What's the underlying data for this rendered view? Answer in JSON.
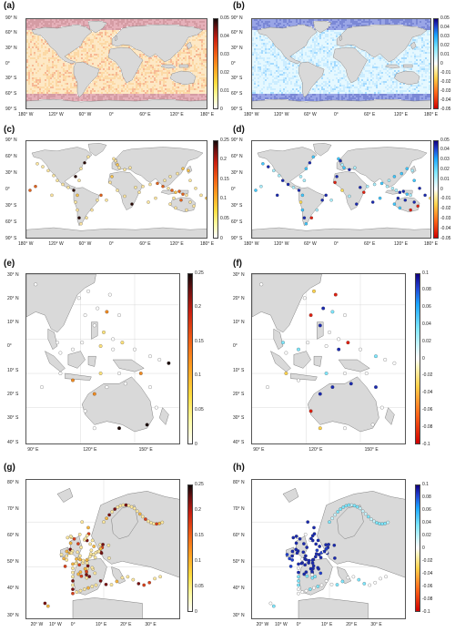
{
  "panels": [
    {
      "id": "a",
      "label": "(a)",
      "type": "global-mean",
      "colormap": "hot",
      "ticks": [
        "0.05",
        "0.04",
        "0.03",
        "0.02",
        "0.01",
        "0"
      ]
    },
    {
      "id": "b",
      "label": "(b)",
      "type": "global-diff",
      "colormap": "diverging",
      "ticks": [
        "0.05",
        "0.04",
        "0.03",
        "0.02",
        "0.01",
        "0",
        "-0.01",
        "-0.02",
        "-0.03",
        "-0.04",
        "-0.05"
      ]
    },
    {
      "id": "c",
      "label": "(c)",
      "type": "global-stations-mean",
      "colormap": "hot",
      "ticks": [
        "0.25",
        "0.2",
        "0.15",
        "0.1",
        "0.05",
        "0"
      ]
    },
    {
      "id": "d",
      "label": "(d)",
      "type": "global-stations-diff",
      "colormap": "diverging",
      "ticks": [
        "0.05",
        "0.04",
        "0.03",
        "0.02",
        "0.01",
        "0",
        "-0.01",
        "-0.02",
        "-0.03",
        "-0.04",
        "-0.05"
      ]
    },
    {
      "id": "e",
      "label": "(e)",
      "type": "seasia-mean",
      "colormap": "hot",
      "ticks": [
        "0.25",
        "0.2",
        "0.15",
        "0.1",
        "0.05",
        "0"
      ]
    },
    {
      "id": "f",
      "label": "(f)",
      "type": "seasia-diff",
      "colormap": "diverging",
      "ticks": [
        "0.1",
        "0.08",
        "0.06",
        "0.04",
        "0.02",
        "0",
        "-0.02",
        "-0.04",
        "-0.06",
        "-0.08",
        "-0.1"
      ]
    },
    {
      "id": "g",
      "label": "(g)",
      "type": "europe-mean",
      "colormap": "hot",
      "ticks": [
        "0.25",
        "0.2",
        "0.15",
        "0.1",
        "0.05",
        "0"
      ]
    },
    {
      "id": "h",
      "label": "(h)",
      "type": "europe-diff",
      "colormap": "diverging",
      "ticks": [
        "0.1",
        "0.08",
        "0.06",
        "0.04",
        "0.02",
        "0",
        "-0.02",
        "-0.04",
        "-0.06",
        "-0.08",
        "-0.1"
      ]
    }
  ],
  "global_axes": {
    "lat_labels": [
      "90° N",
      "60° N",
      "30° N",
      "0°",
      "30° S",
      "60° S",
      "90° S"
    ],
    "lon_labels": [
      "180° W",
      "120° W",
      "60° W",
      "0°",
      "60° E",
      "120° E",
      "180° E"
    ]
  },
  "seasia_axes": {
    "lat_labels": [
      "30° N",
      "20° N",
      "10° N",
      "0°",
      "10° S",
      "20° S",
      "30° S",
      "40° S"
    ],
    "lon_labels": [
      "90° E",
      "120° E",
      "150° E"
    ]
  },
  "europe_axes": {
    "lat_labels": [
      "80° N",
      "70° N",
      "60° N",
      "50° N",
      "40° N",
      "30° N"
    ],
    "lon_labels": [
      "20° W",
      "10° W",
      "0°",
      "10° E",
      "20° E",
      "30° E"
    ]
  },
  "colors": {
    "land": "#d9d9d9",
    "coast": "#666666",
    "grid": "#cfcfcf"
  }
}
